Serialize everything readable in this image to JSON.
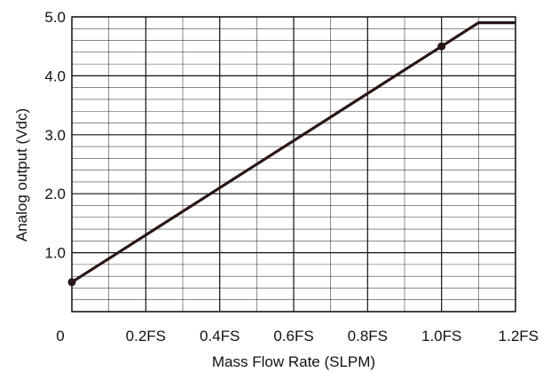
{
  "chart_data": {
    "type": "line",
    "title": "",
    "xlabel": "Mass Flow Rate (SLPM)",
    "ylabel": "Analog output (Vdc)",
    "xlim": [
      0,
      1.2
    ],
    "ylim": [
      0,
      5.0
    ],
    "grid": true,
    "x_ticks": [
      {
        "value": 0,
        "label": "0"
      },
      {
        "value": 0.2,
        "label": "0.2FS"
      },
      {
        "value": 0.4,
        "label": "0.4FS"
      },
      {
        "value": 0.6,
        "label": "0.6FS"
      },
      {
        "value": 0.8,
        "label": "0.8FS"
      },
      {
        "value": 1.0,
        "label": "1.0FS"
      },
      {
        "value": 1.2,
        "label": "1.2FS"
      }
    ],
    "y_ticks": [
      {
        "value": 1.0,
        "label": "1.0"
      },
      {
        "value": 2.0,
        "label": "2.0"
      },
      {
        "value": 3.0,
        "label": "3.0"
      },
      {
        "value": 4.0,
        "label": "4.0"
      },
      {
        "value": 5.0,
        "label": "5.0"
      }
    ],
    "series": [
      {
        "x": [
          0,
          1.0,
          1.1,
          1.2
        ],
        "y": [
          0.5,
          4.5,
          4.9,
          4.9
        ],
        "markers": [
          {
            "x": 0,
            "y": 0.5
          },
          {
            "x": 1.0,
            "y": 4.5
          }
        ]
      }
    ],
    "colors": {
      "line": "#2a1614",
      "grid": "#111111",
      "axis": "#111111"
    }
  }
}
